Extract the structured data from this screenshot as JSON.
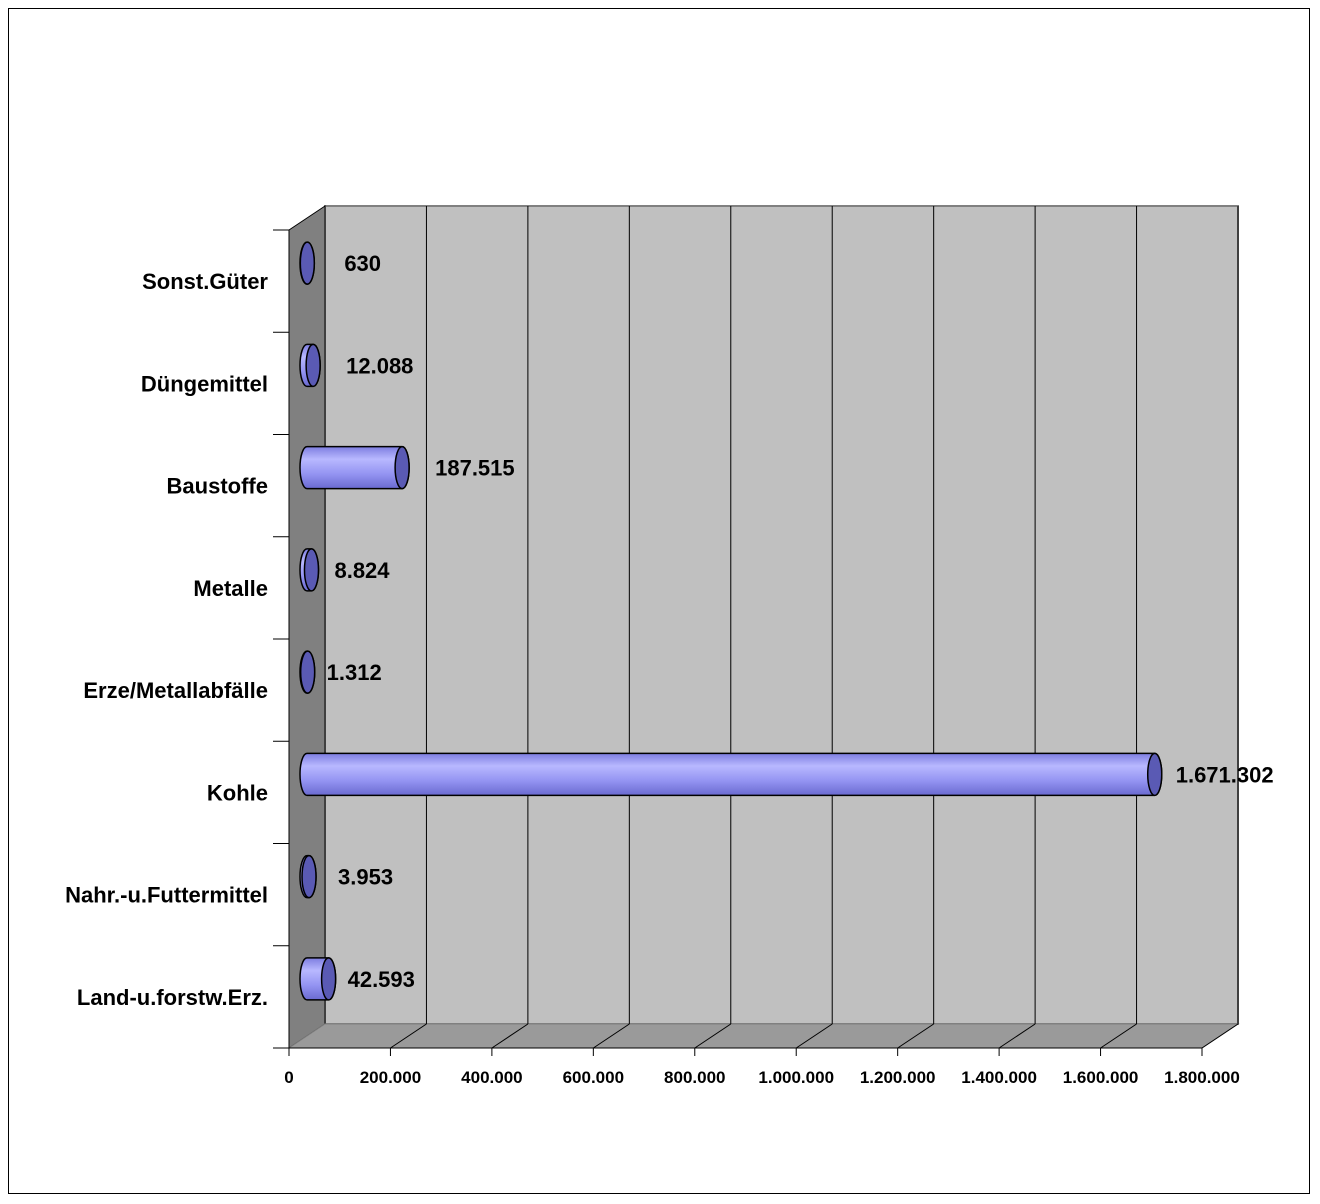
{
  "chart_data": {
    "type": "bar",
    "orientation": "horizontal",
    "style": "3d-cylinder",
    "title": "",
    "xlabel": "",
    "ylabel": "",
    "categories": [
      "Land-u.forstw.Erz.",
      "Nahr.-u.Futtermittel",
      "Kohle",
      "Erze/Metallabfälle",
      "Metalle",
      "Baustoffe",
      "Düngemittel",
      "Sonst.Güter"
    ],
    "values": [
      42593,
      3953,
      1671302,
      1312,
      8824,
      187515,
      12088,
      630
    ],
    "data_labels": [
      "42.593",
      "3.953",
      "1.671.302",
      "1.312",
      "8.824",
      "187.515",
      "12.088",
      "630"
    ],
    "xlim": [
      0,
      1800000
    ],
    "x_ticks": [
      0,
      200000,
      400000,
      600000,
      800000,
      1000000,
      1200000,
      1400000,
      1600000,
      1800000
    ],
    "x_tick_labels": [
      "0",
      "200.000",
      "400.000",
      "600.000",
      "800.000",
      "1.000.000",
      "1.200.000",
      "1.400.000",
      "1.600.000",
      "1.800.000"
    ],
    "grid": true,
    "legend": "none",
    "colors": {
      "bar_fill": "#8f8ff0",
      "bar_highlight": "#b8b8ff",
      "bar_cap": "#5a5ab4",
      "wall": "#c0c0c0",
      "side_wall": "#808080",
      "floor": "#9a9a9a"
    }
  }
}
